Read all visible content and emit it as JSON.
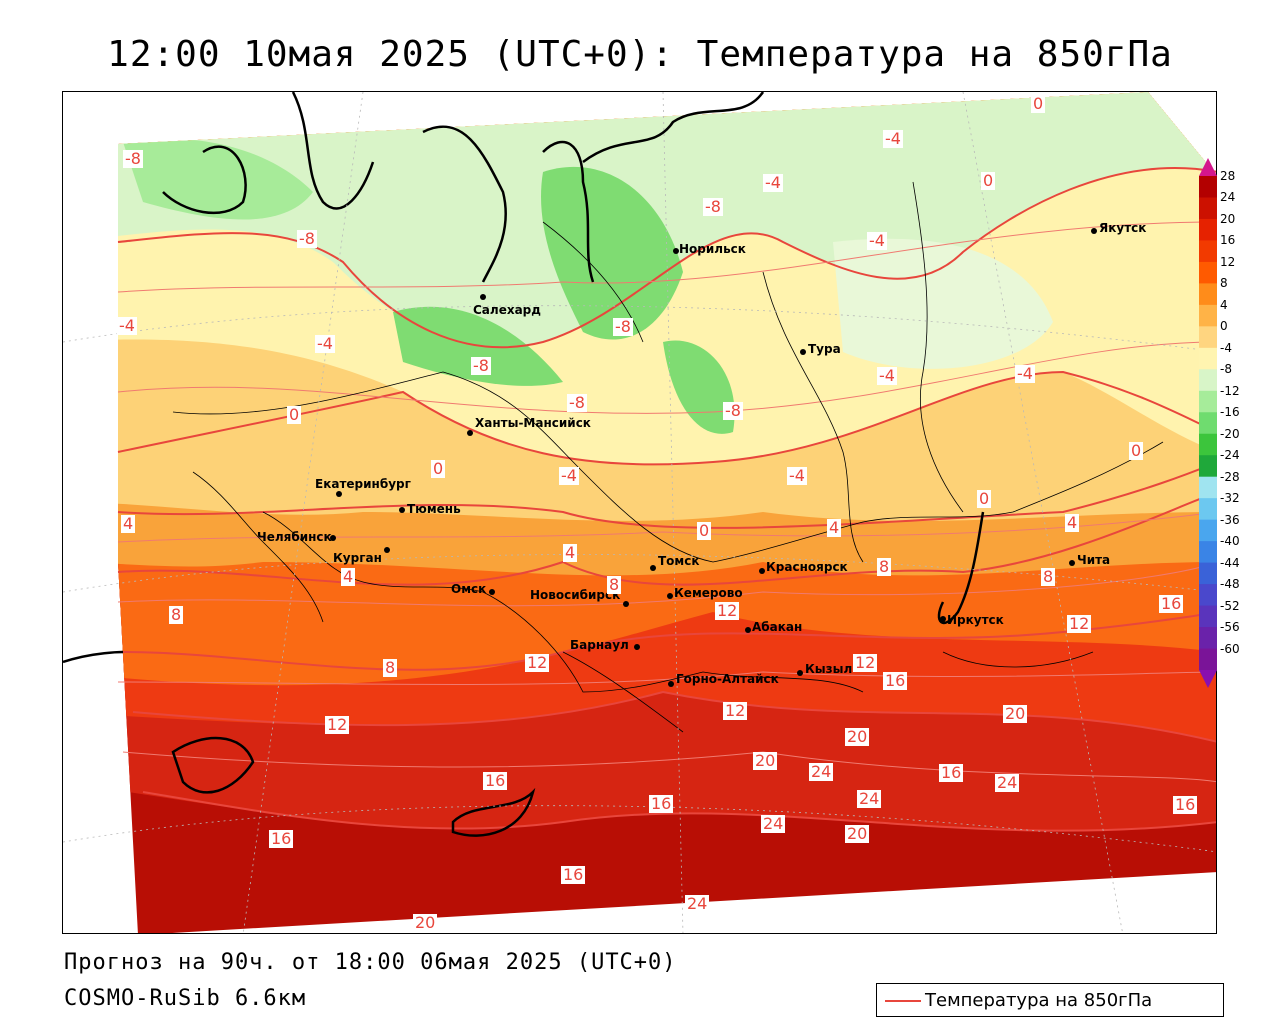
{
  "title": "12:00 10мая 2025 (UTC+0): Температура на 850гПа",
  "forecast_line": "Прогноз на 90ч. от 18:00 06мая 2025 (UTC+0)",
  "model_line": "COSMO-RuSib 6.6км",
  "legend": {
    "label": "Температура на 850гПа",
    "line_color": "#e8463c"
  },
  "colorbar": {
    "ticks": [
      "28",
      "24",
      "20",
      "16",
      "12",
      "8",
      "4",
      "0",
      "-4",
      "-8",
      "-12",
      "-16",
      "-20",
      "-24",
      "-28",
      "-32",
      "-36",
      "-40",
      "-44",
      "-48",
      "-52",
      "-56",
      "-60"
    ],
    "colors": [
      "#b30000",
      "#cc1100",
      "#e62200",
      "#f23a00",
      "#ff5a00",
      "#ff8c1a",
      "#ffb347",
      "#ffd580",
      "#fff4b0",
      "#d8f5c8",
      "#a6ec9a",
      "#6fdc6f",
      "#3cc53c",
      "#1fa83a",
      "#a0e4f0",
      "#6cc8f0",
      "#4aa6ee",
      "#3a84e6",
      "#3a62d8",
      "#4a48cc",
      "#5a34bc",
      "#6a22aa",
      "#7a1498"
    ]
  },
  "cities": [
    {
      "name": "Норильск"
    },
    {
      "name": "Якутск"
    },
    {
      "name": "Салехард"
    },
    {
      "name": "Тура"
    },
    {
      "name": "Ханты-Мансийск"
    },
    {
      "name": "Екатеринбург"
    },
    {
      "name": "Тюмень"
    },
    {
      "name": "Челябинск"
    },
    {
      "name": "Курган"
    },
    {
      "name": "Омск"
    },
    {
      "name": "Новосибирск"
    },
    {
      "name": "Томск"
    },
    {
      "name": "Кемерово"
    },
    {
      "name": "Красноярск"
    },
    {
      "name": "Барнаул"
    },
    {
      "name": "Абакан"
    },
    {
      "name": "Горно-Алтайск"
    },
    {
      "name": "Кызыл"
    },
    {
      "name": "Иркутск"
    },
    {
      "name": "Чита"
    }
  ],
  "contour_labels": [
    "-8",
    "-8",
    "-8",
    "-8",
    "-8",
    "-8",
    "-8",
    "-4",
    "-4",
    "-4",
    "-4",
    "-4",
    "-4",
    "-4",
    "-4",
    "-4",
    "0",
    "0",
    "0",
    "0",
    "0",
    "0",
    "0",
    "4",
    "4",
    "4",
    "4",
    "4",
    "8",
    "8",
    "8",
    "8",
    "8",
    "12",
    "12",
    "12",
    "12",
    "12",
    "12",
    "16",
    "16",
    "16",
    "16",
    "16",
    "16",
    "16",
    "16",
    "20",
    "20",
    "20",
    "20",
    "20",
    "24",
    "24",
    "24",
    "24",
    "24"
  ]
}
